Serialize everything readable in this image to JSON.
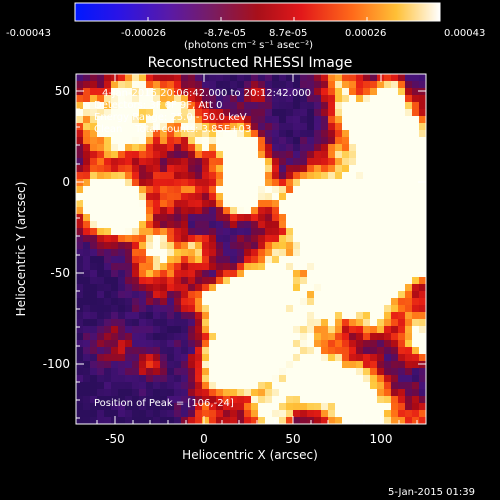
{
  "colorbar": {
    "tick_labels": [
      "-0.00043",
      "-0.00026",
      "-8.7e-05",
      "8.7e-05",
      "0.00026",
      "0.00043"
    ],
    "unit_label": "(photons cm⁻² s⁻¹ asec⁻²)"
  },
  "title": "Reconstructed RHESSI Image",
  "annotations": {
    "time_range": "4-Jan-2015 20:06:42.000 to 20:12:42.000",
    "detectors": "Detectors: 3F 6F 9F, Att 0",
    "energy": "Energy Range: 25.0 - 50.0 keV",
    "clean": "Clean    Total counts: 3.85E+03",
    "peak": "Position of Peak = [106,-24]"
  },
  "axes": {
    "xlabel": "Heliocentric X (arcsec)",
    "ylabel": "Heliocentric Y (arcsec)",
    "xticks": [
      "-50",
      "0",
      "50",
      "100"
    ],
    "yticks": [
      "50",
      "0",
      "-50",
      "-100"
    ]
  },
  "footer": {
    "timestamp": "5-Jan-2015 01:39"
  }
}
